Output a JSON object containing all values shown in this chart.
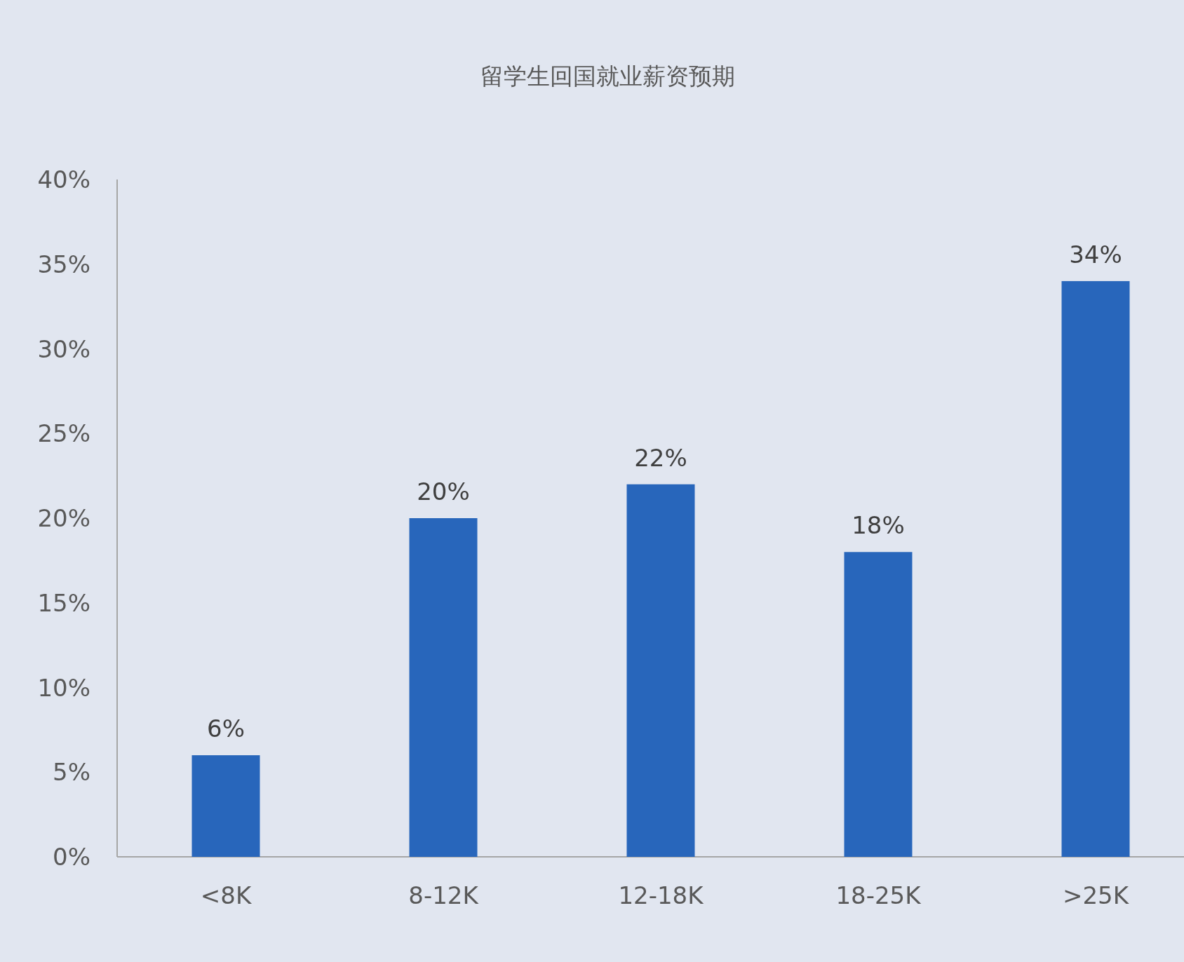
{
  "chart_data": {
    "type": "bar",
    "title": "留学生回国就业薪资预期",
    "categories": [
      "<8K",
      "8-12K",
      "12-18K",
      "18-25K",
      ">25K"
    ],
    "values": [
      6,
      20,
      22,
      18,
      34
    ],
    "value_labels": [
      "6%",
      "20%",
      "22%",
      "18%",
      "34%"
    ],
    "color": "#2866bb",
    "ylim": [
      0,
      40
    ],
    "yticks": [
      {
        "value": 0,
        "label": "0%"
      },
      {
        "value": 5,
        "label": "5%"
      },
      {
        "value": 10,
        "label": "10%"
      },
      {
        "value": 15,
        "label": "15%"
      },
      {
        "value": 20,
        "label": "20%"
      },
      {
        "value": 25,
        "label": "25%"
      },
      {
        "value": 30,
        "label": "30%"
      },
      {
        "value": 35,
        "label": "35%"
      },
      {
        "value": 40,
        "label": "40%"
      }
    ]
  }
}
